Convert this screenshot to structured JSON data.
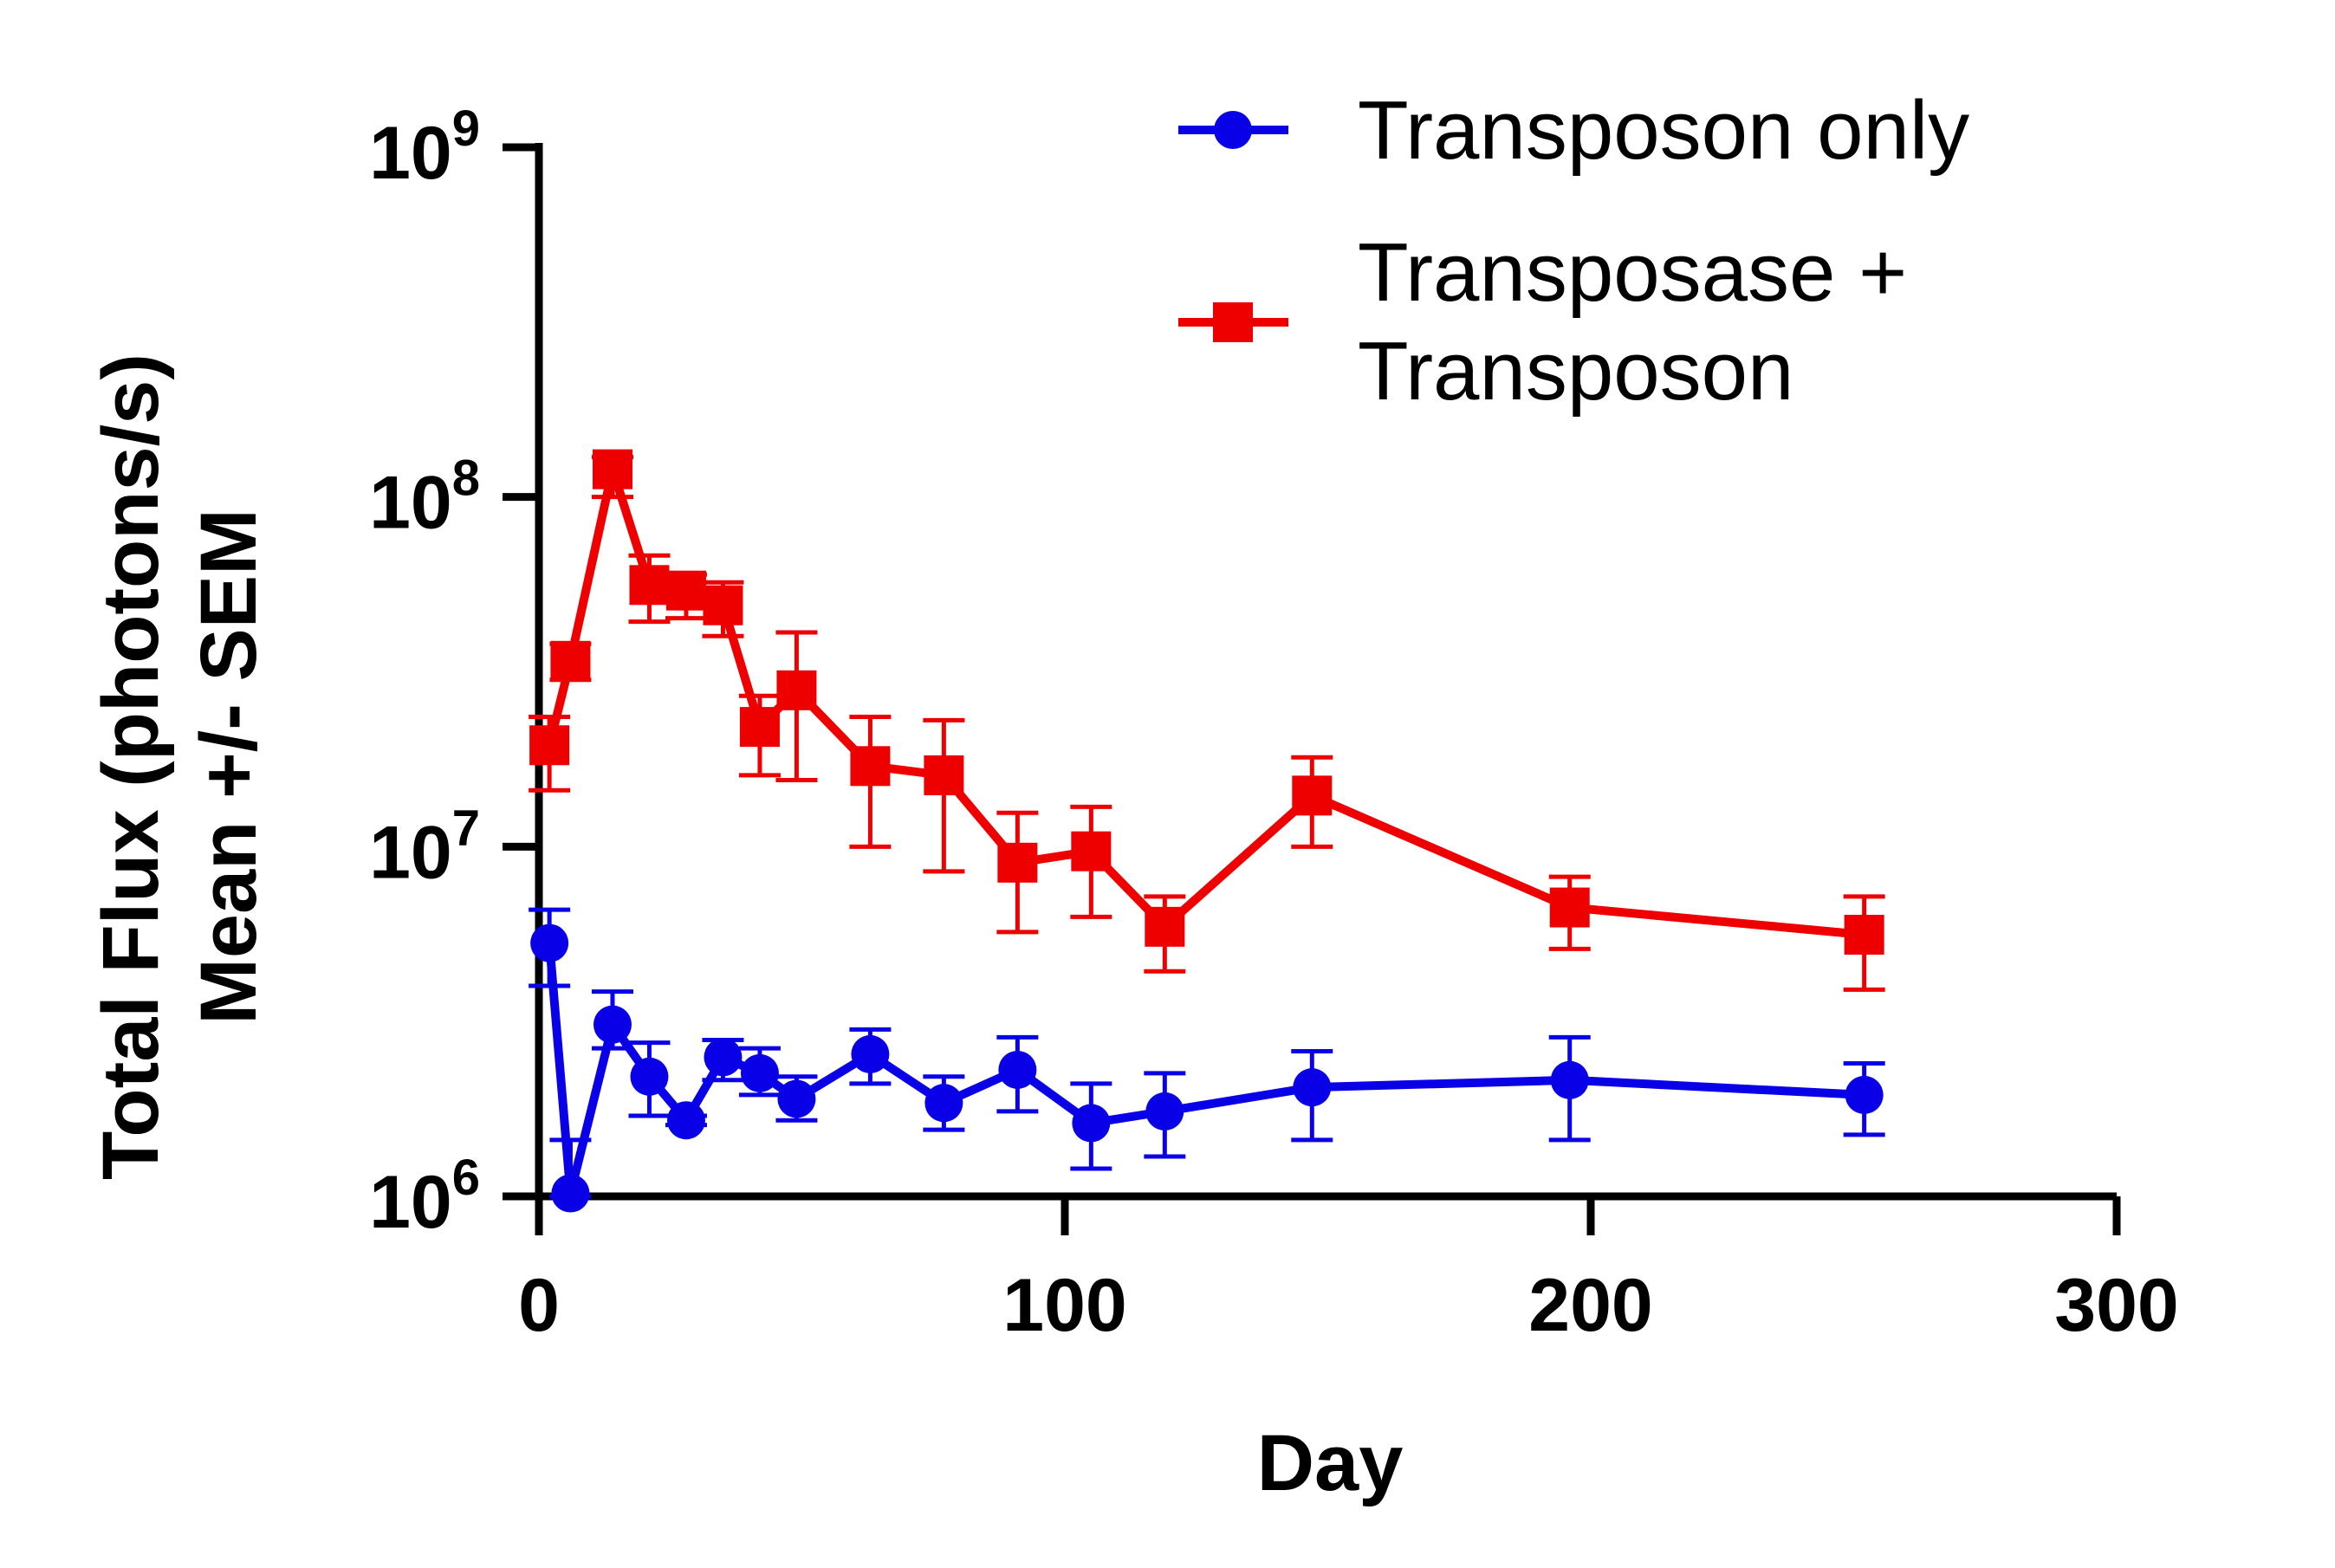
{
  "chart_data": {
    "type": "line",
    "title": "",
    "xlabel": "Day",
    "ylabel_lines": [
      "Total Flux (photons/s)",
      "Mean +/-  SEM"
    ],
    "x_ticks": [
      "0",
      "100",
      "200",
      "300"
    ],
    "x_tick_values": [
      0,
      100,
      200,
      300
    ],
    "y_ticks": [
      {
        "value": 1000000,
        "base": "10",
        "exp": "6"
      },
      {
        "value": 10000000,
        "base": "10",
        "exp": "7"
      },
      {
        "value": 100000000,
        "base": "10",
        "exp": "8"
      },
      {
        "value": 1000000000,
        "base": "10",
        "exp": "9"
      }
    ],
    "xlim": [
      0,
      300
    ],
    "ylim": [
      1000000,
      1000000000
    ],
    "yscale": "log",
    "legend_position": "top-right",
    "series": [
      {
        "name": "Transposon only",
        "color": "#0a00e8",
        "marker": "circle",
        "x": [
          2,
          6,
          14,
          21,
          28,
          35,
          42,
          49,
          63,
          77,
          91,
          105,
          119,
          147,
          196,
          252
        ],
        "y": [
          5300000,
          1020000,
          3100000,
          2200000,
          1650000,
          2500000,
          2250000,
          1900000,
          2550000,
          1850000,
          2300000,
          1620000,
          1750000,
          2050000,
          2150000,
          1950000
        ],
        "err_low": [
          4000000,
          1000000,
          2650000,
          1700000,
          1600000,
          2150000,
          1950000,
          1650000,
          2100000,
          1550000,
          1750000,
          1200000,
          1300000,
          1450000,
          1450000,
          1500000
        ],
        "err_high": [
          6600000,
          1450000,
          3850000,
          2750000,
          1700000,
          2800000,
          2650000,
          2200000,
          3000000,
          2200000,
          2850000,
          2100000,
          2250000,
          2600000,
          2850000,
          2400000
        ]
      },
      {
        "name": "Transposase + Transposon",
        "legend_lines": [
          "Transposase  +",
          "Transposon"
        ],
        "color": "#ee0000",
        "marker": "square",
        "x": [
          2,
          6,
          14,
          21,
          28,
          35,
          42,
          49,
          63,
          77,
          91,
          105,
          119,
          147,
          196,
          252
        ],
        "y": [
          19500000,
          34000000,
          120000000,
          56000000,
          54000000,
          49000000,
          22000000,
          28000000,
          17000000,
          16000000,
          9000000,
          9700000,
          5900000,
          14000000,
          6700000,
          5600000
        ],
        "err_low": [
          14500000,
          30000000,
          100000000,
          44000000,
          45000000,
          40000000,
          16000000,
          15500000,
          10000000,
          8500000,
          5700000,
          6300000,
          4400000,
          10000000,
          5100000,
          3900000
        ],
        "err_high": [
          23500000,
          38000000,
          130000000,
          68000000,
          60000000,
          57000000,
          27000000,
          41000000,
          23500000,
          23000000,
          12500000,
          13000000,
          7200000,
          18000000,
          8200000,
          7200000
        ]
      }
    ]
  }
}
